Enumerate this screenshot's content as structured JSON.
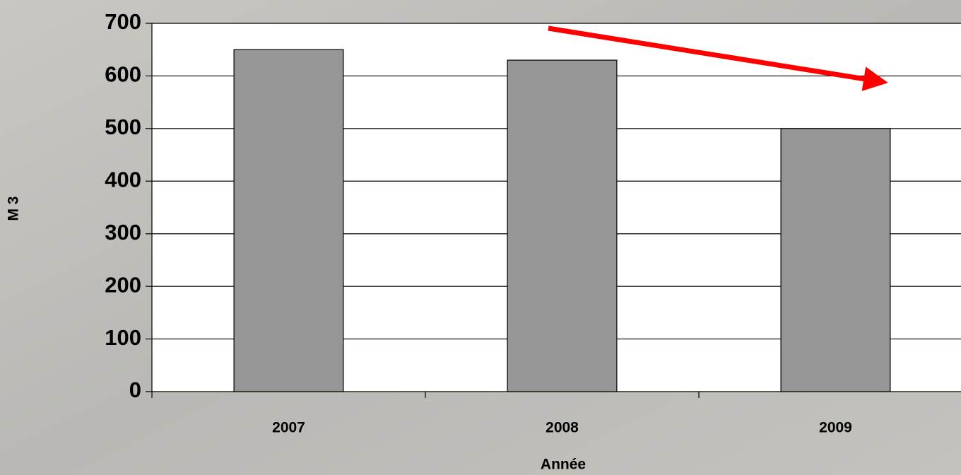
{
  "chart_data": {
    "type": "bar",
    "categories": [
      "2007",
      "2008",
      "2009"
    ],
    "values": [
      650,
      630,
      500
    ],
    "color": "#969696",
    "ylim": [
      0,
      700
    ],
    "yticks": [
      0,
      100,
      200,
      300,
      400,
      500,
      600,
      700
    ],
    "grid": true,
    "x_label": "Année",
    "y_label": "M 3"
  }
}
